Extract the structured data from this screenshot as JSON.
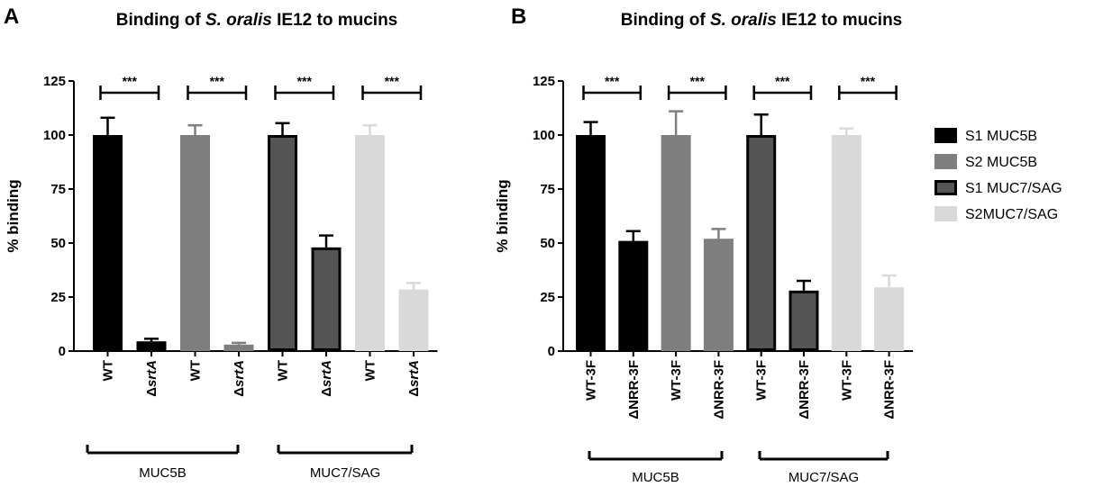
{
  "panels": [
    {
      "letter": "A",
      "title_pre": "Binding of ",
      "title_italic": "S. oralis",
      "title_post": " IE12 to mucins",
      "ylabel": "% binding",
      "ylim": [
        0,
        125
      ],
      "yticks": [
        "0",
        "25",
        "50",
        "75",
        "100",
        "125"
      ],
      "groups": [
        "MUC5B",
        "MUC7/SAG"
      ],
      "significance": [
        "***",
        "***",
        "***",
        "***"
      ]
    },
    {
      "letter": "B",
      "title_pre": "Binding of ",
      "title_italic": "S. oralis",
      "title_post": " IE12 to mucins",
      "ylabel": "% binding",
      "ylim": [
        0,
        125
      ],
      "yticks": [
        "0",
        "25",
        "50",
        "75",
        "100",
        "125"
      ],
      "groups": [
        "MUC5B",
        "MUC7/SAG"
      ],
      "significance": [
        "***",
        "***",
        "***",
        "***"
      ]
    }
  ],
  "legend": [
    {
      "label": "S1 MUC5B",
      "color": "#000000"
    },
    {
      "label": "S2 MUC5B",
      "color": "#7f7f7f"
    },
    {
      "label": "S1 MUC7/SAG",
      "color": "#555555"
    },
    {
      "label": "S2MUC7/SAG",
      "color": "#d9d9d9"
    }
  ],
  "chart_data": [
    {
      "type": "bar",
      "panel": "A",
      "title": "Binding of S. oralis IE12 to mucins",
      "ylabel": "% binding",
      "ylim": [
        0,
        125
      ],
      "categories": [
        {
          "prefix": "",
          "italic": "",
          "text": "WT"
        },
        {
          "prefix": "Δ",
          "italic": "srtA",
          "text": ""
        },
        {
          "prefix": "",
          "italic": "",
          "text": "WT"
        },
        {
          "prefix": "Δ",
          "italic": "srtA",
          "text": ""
        },
        {
          "prefix": "",
          "italic": "",
          "text": "WT"
        },
        {
          "prefix": "Δ",
          "italic": "srtA",
          "text": ""
        },
        {
          "prefix": "",
          "italic": "",
          "text": "WT"
        },
        {
          "prefix": "Δ",
          "italic": "srtA",
          "text": ""
        }
      ],
      "values": [
        100,
        4.5,
        100,
        3,
        100,
        48,
        100,
        28.5
      ],
      "errors": [
        8,
        1.2,
        4.5,
        0.8,
        5.5,
        5.5,
        4.5,
        3
      ],
      "series_index": [
        0,
        0,
        1,
        1,
        2,
        2,
        3,
        3
      ],
      "comparisons": [
        [
          0,
          1
        ],
        [
          2,
          3
        ],
        [
          4,
          5
        ],
        [
          6,
          7
        ]
      ]
    },
    {
      "type": "bar",
      "panel": "B",
      "title": "Binding of S. oralis IE12 to mucins",
      "ylabel": "% binding",
      "ylim": [
        0,
        125
      ],
      "categories": [
        {
          "prefix": "",
          "italic": "",
          "text": "WT-3F"
        },
        {
          "prefix": "",
          "italic": "",
          "text": "ΔNRR-3F"
        },
        {
          "prefix": "",
          "italic": "",
          "text": "WT-3F"
        },
        {
          "prefix": "",
          "italic": "",
          "text": "ΔNRR-3F"
        },
        {
          "prefix": "",
          "italic": "",
          "text": "WT-3F"
        },
        {
          "prefix": "",
          "italic": "",
          "text": "ΔNRR-3F"
        },
        {
          "prefix": "",
          "italic": "",
          "text": "WT-3F"
        },
        {
          "prefix": "",
          "italic": "",
          "text": "ΔNRR-3F"
        }
      ],
      "values": [
        100,
        51,
        100,
        52,
        100,
        28,
        100,
        29.5
      ],
      "errors": [
        6,
        4.5,
        11,
        4.5,
        9.5,
        4.5,
        3,
        5.5
      ],
      "series_index": [
        0,
        0,
        1,
        1,
        2,
        2,
        3,
        3
      ],
      "comparisons": [
        [
          0,
          1
        ],
        [
          2,
          3
        ],
        [
          4,
          5
        ],
        [
          6,
          7
        ]
      ]
    }
  ]
}
